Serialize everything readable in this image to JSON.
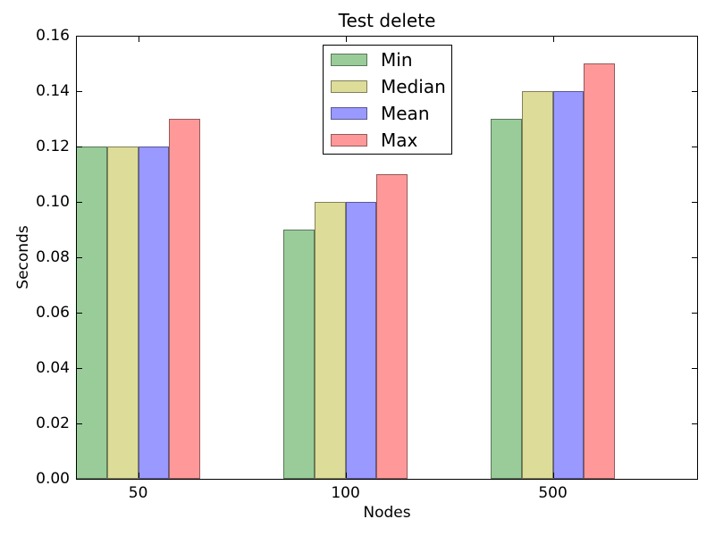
{
  "chart_data": {
    "type": "bar",
    "title": "Test delete",
    "xlabel": "Nodes",
    "ylabel": "Seconds",
    "categories": [
      "50",
      "100",
      "500"
    ],
    "series": [
      {
        "name": "Min",
        "color": "#99cc99",
        "values": [
          0.12,
          0.09,
          0.13
        ]
      },
      {
        "name": "Median",
        "color": "#dddd99",
        "values": [
          0.12,
          0.1,
          0.14
        ]
      },
      {
        "name": "Mean",
        "color": "#9999ff",
        "values": [
          0.12,
          0.1,
          0.14
        ]
      },
      {
        "name": "Max",
        "color": "#ff9999",
        "values": [
          0.13,
          0.11,
          0.15
        ]
      }
    ],
    "ylim": [
      0.0,
      0.16
    ],
    "ytick_labels": [
      "0.00",
      "0.02",
      "0.04",
      "0.06",
      "0.08",
      "0.10",
      "0.12",
      "0.14",
      "0.16"
    ],
    "bar_edge_color": "rgba(0,0,0,0.42)",
    "legend_position": "upper center",
    "grid": false,
    "tick_direction": "in",
    "background_color": "#ffffff"
  }
}
